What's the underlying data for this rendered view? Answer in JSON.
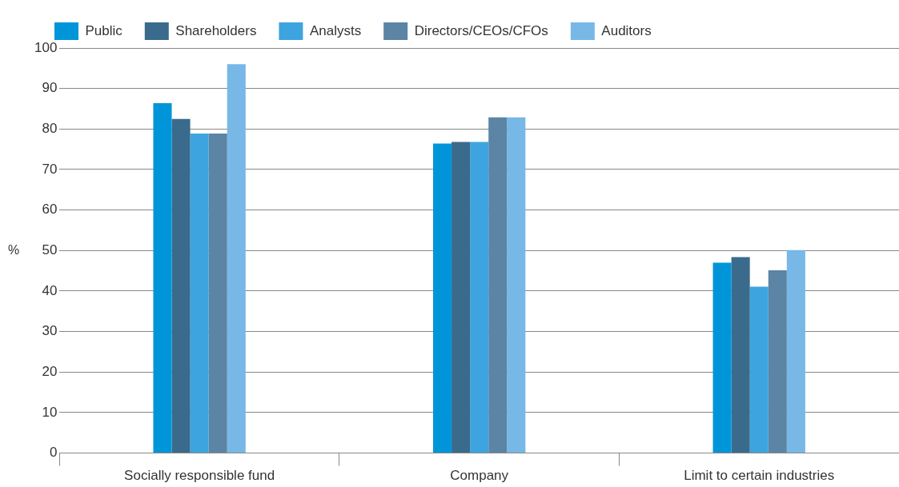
{
  "chart_data": {
    "type": "bar",
    "ylabel": "%",
    "categories": [
      "Socially responsible fund",
      "Company",
      "Limit to certain industries"
    ],
    "series": [
      {
        "name": "Public",
        "color": "#0095d9",
        "values": [
          86.4,
          76.4,
          47.0
        ]
      },
      {
        "name": "Shareholders",
        "color": "#3a6b8c",
        "values": [
          82.5,
          76.8,
          48.4
        ]
      },
      {
        "name": "Analysts",
        "color": "#3ea4df",
        "values": [
          78.9,
          76.8,
          41.1
        ]
      },
      {
        "name": "Directors/CEOs/CFOs",
        "color": "#5b84a5",
        "values": [
          78.9,
          82.9,
          45.1
        ]
      },
      {
        "name": "Auditors",
        "color": "#77b8e6",
        "values": [
          96.0,
          82.9,
          50.1
        ]
      }
    ],
    "ylim": [
      0,
      100
    ],
    "yticks": [
      0,
      10,
      20,
      30,
      40,
      50,
      60,
      70,
      80,
      90,
      100
    ],
    "grid": "y",
    "legend": "top left"
  }
}
